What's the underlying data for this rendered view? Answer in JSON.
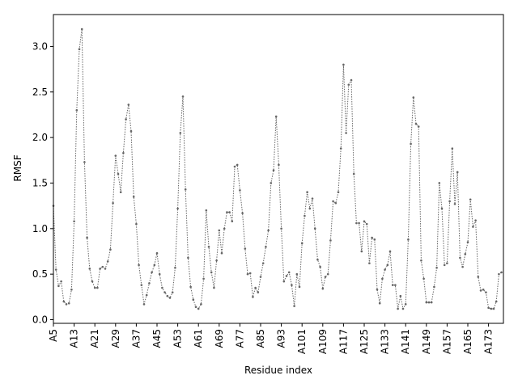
{
  "chart_data": {
    "type": "line",
    "xlabel": "Residue index",
    "ylabel": "RMSF",
    "color": "#666666",
    "grid": false,
    "categories": [
      "A5",
      null,
      null,
      null,
      null,
      null,
      null,
      null,
      "A13",
      null,
      null,
      null,
      null,
      null,
      null,
      null,
      "A21",
      null,
      null,
      null,
      null,
      null,
      null,
      null,
      "A29",
      null,
      null,
      null,
      null,
      null,
      null,
      null,
      "A37",
      null,
      null,
      null,
      null,
      null,
      null,
      null,
      "A45",
      null,
      null,
      null,
      null,
      null,
      null,
      null,
      "A53",
      null,
      null,
      null,
      null,
      null,
      null,
      null,
      "A61",
      null,
      null,
      null,
      null,
      null,
      null,
      null,
      "A69",
      null,
      null,
      null,
      null,
      null,
      null,
      null,
      "A77",
      null,
      null,
      null,
      null,
      null,
      null,
      null,
      "A85",
      null,
      null,
      null,
      null,
      null,
      null,
      null,
      "A93",
      null,
      null,
      null,
      null,
      null,
      null,
      null,
      "A101",
      null,
      null,
      null,
      null,
      null,
      null,
      null,
      "A109",
      null,
      null,
      null,
      null,
      null,
      null,
      null,
      "A117",
      null,
      null,
      null,
      null,
      null,
      null,
      null,
      "A125",
      null,
      null,
      null,
      null,
      null,
      null,
      null,
      "A133",
      null,
      null,
      null,
      null,
      null,
      null,
      null,
      "A141",
      null,
      null,
      null,
      null,
      null,
      null,
      null,
      "A149",
      null,
      null,
      null,
      null,
      null,
      null,
      null,
      "A157",
      null,
      null,
      null,
      null,
      null,
      null,
      null,
      "A165",
      null,
      null,
      null,
      null,
      null,
      null,
      null,
      "A173",
      null,
      null,
      null,
      null,
      null
    ],
    "values": [
      1.25,
      0.55,
      0.37,
      0.42,
      0.2,
      0.17,
      0.18,
      0.33,
      1.08,
      2.3,
      2.97,
      3.19,
      1.73,
      0.9,
      0.56,
      0.42,
      0.35,
      0.35,
      0.56,
      0.58,
      0.56,
      0.64,
      0.77,
      1.28,
      1.8,
      1.6,
      1.4,
      1.83,
      2.2,
      2.36,
      2.07,
      1.35,
      1.05,
      0.6,
      0.38,
      0.17,
      0.27,
      0.4,
      0.52,
      0.6,
      0.73,
      0.5,
      0.35,
      0.3,
      0.26,
      0.24,
      0.3,
      0.57,
      1.22,
      2.05,
      2.45,
      1.43,
      0.68,
      0.36,
      0.22,
      0.14,
      0.12,
      0.17,
      0.45,
      1.2,
      0.8,
      0.52,
      0.35,
      0.65,
      0.98,
      0.73,
      1.0,
      1.18,
      1.18,
      1.08,
      1.68,
      1.7,
      1.42,
      1.17,
      0.78,
      0.5,
      0.51,
      0.25,
      0.35,
      0.3,
      0.47,
      0.62,
      0.8,
      0.98,
      1.5,
      1.64,
      2.23,
      1.7,
      1.0,
      0.42,
      0.48,
      0.52,
      0.38,
      0.15,
      0.5,
      0.36,
      0.84,
      1.14,
      1.4,
      1.22,
      1.33,
      1.0,
      0.66,
      0.58,
      0.34,
      0.47,
      0.5,
      0.87,
      1.3,
      1.28,
      1.4,
      1.88,
      2.8,
      2.05,
      2.58,
      2.63,
      1.6,
      1.06,
      1.06,
      0.75,
      1.08,
      1.05,
      0.62,
      0.9,
      0.88,
      0.33,
      0.18,
      0.45,
      0.55,
      0.6,
      0.75,
      0.38,
      0.38,
      0.12,
      0.26,
      0.12,
      0.17,
      0.88,
      1.93,
      2.44,
      2.15,
      2.12,
      0.65,
      0.45,
      0.19,
      0.19,
      0.19,
      0.36,
      0.57,
      1.5,
      1.22,
      0.6,
      0.62,
      1.3,
      1.88,
      1.27,
      1.62,
      0.68,
      0.58,
      0.72,
      0.85,
      1.32,
      1.02,
      1.09,
      0.47,
      0.32,
      0.33,
      0.3,
      0.13,
      0.12,
      0.12,
      0.2,
      0.5,
      0.52
    ],
    "ylim": [
      -0.04,
      3.35
    ],
    "yticks": [
      {
        "value": 0,
        "label": "0.0"
      },
      0.5,
      {
        "value": 1,
        "label": "1.0"
      },
      1.5,
      {
        "value": 2,
        "label": "2.0"
      },
      2.5,
      {
        "value": 3,
        "label": "3.0"
      }
    ]
  }
}
